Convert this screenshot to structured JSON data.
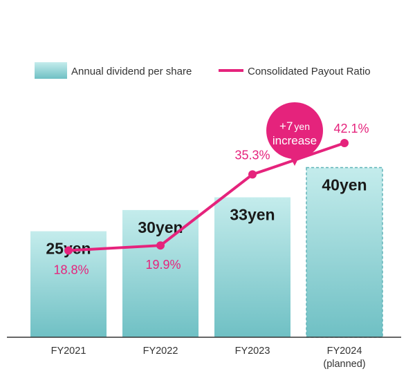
{
  "chart_data": {
    "type": "bar",
    "categories": [
      "FY2021",
      "FY2022",
      "FY2023",
      "FY2024"
    ],
    "category_sublabels": [
      "",
      "",
      "",
      "(planned)"
    ],
    "series": [
      {
        "name": "Annual dividend per share",
        "type": "bar",
        "values": [
          25,
          30,
          33,
          40
        ],
        "value_labels": [
          "25yen",
          "30yen",
          "33yen",
          "40yen"
        ],
        "planned": [
          false,
          false,
          false,
          true
        ]
      },
      {
        "name": "Consolidated Payout Ratio",
        "type": "line",
        "values": [
          18.8,
          19.9,
          35.3,
          42.1
        ],
        "value_labels": [
          "18.8%",
          "19.9%",
          "35.3%",
          "42.1%"
        ]
      }
    ],
    "annotation": {
      "amount": "+7",
      "unit": "yen",
      "line2": "increase"
    },
    "legend_position": "top",
    "bar_ylim": [
      0,
      44
    ],
    "line_ylim": [
      0,
      45.7
    ],
    "grid": false,
    "colors": {
      "bar_top": "#c4ecec",
      "bar_bottom": "#6fc0c4",
      "line": "#e5237c",
      "planned_border": "#5fb3b8",
      "axis": "#333333"
    }
  }
}
